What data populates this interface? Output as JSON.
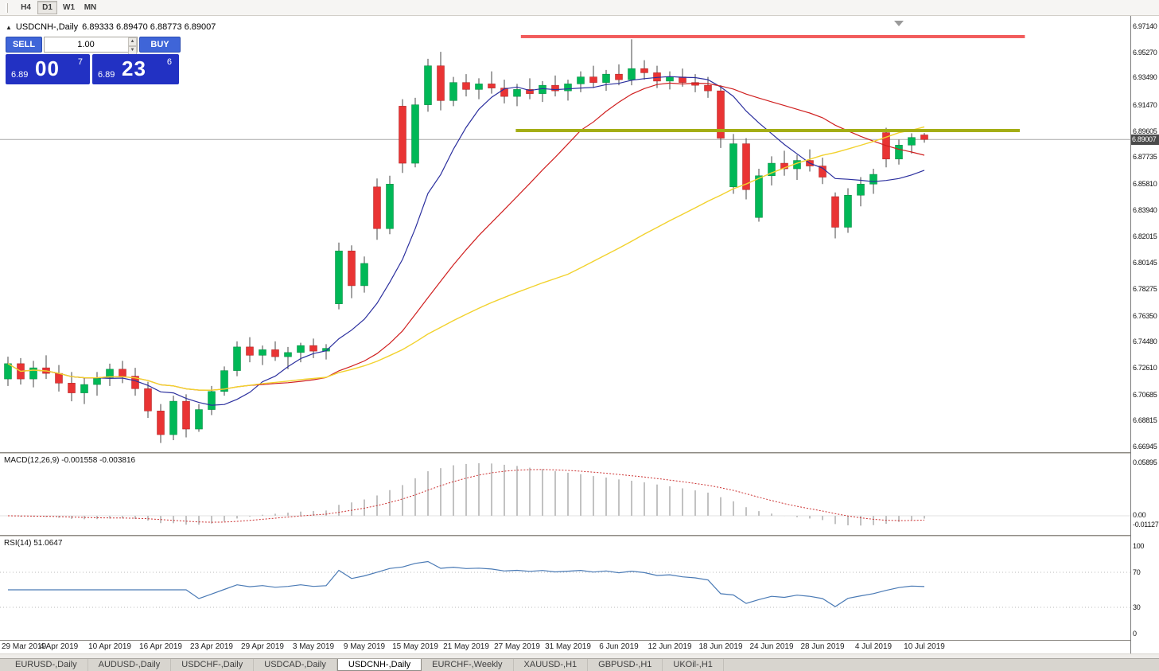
{
  "toolbar": {
    "timeframes": [
      "H4",
      "D1",
      "W1",
      "MN"
    ],
    "active": "D1"
  },
  "title_bar": {
    "expander": "▲",
    "symbol_title": "USDCNH-,Daily",
    "ohlc": "6.89333 6.89470 6.88773 6.89007"
  },
  "one_click": {
    "sell_label": "SELL",
    "buy_label": "BUY",
    "lots": "1.00",
    "bid_small": "6.89",
    "bid_big": "00",
    "bid_sup": "7",
    "ask_small": "6.89",
    "ask_big": "23",
    "ask_sup": "6"
  },
  "price_scale": [
    "6.97140",
    "6.95270",
    "6.93490",
    "6.91470",
    "6.89605",
    "6.87735",
    "6.85810",
    "6.83940",
    "6.82015",
    "6.80145",
    "6.78275",
    "6.76350",
    "6.74480",
    "6.72610",
    "6.70685",
    "6.68815",
    "6.66945"
  ],
  "bid_badge": "6.89007",
  "macd_panel": {
    "label": "MACD(12,26,9) -0.001558 -0.003816",
    "scale_top": "0.05895",
    "scale_zero": "0.00",
    "scale_min": "-0.01127"
  },
  "rsi_panel": {
    "label": "RSI(14) 51.0647",
    "scale": [
      "100",
      "70",
      "30",
      "0"
    ],
    "levels": [
      70,
      30
    ]
  },
  "date_axis": [
    "29 Mar 2019",
    "4 Apr 2019",
    "10 Apr 2019",
    "16 Apr 2019",
    "23 Apr 2019",
    "29 Apr 2019",
    "3 May 2019",
    "9 May 2019",
    "15 May 2019",
    "21 May 2019",
    "27 May 2019",
    "31 May 2019",
    "6 Jun 2019",
    "12 Jun 2019",
    "18 Jun 2019",
    "24 Jun 2019",
    "28 Jun 2019",
    "4 Jul 2019",
    "10 Jul 2019"
  ],
  "tabs": {
    "items": [
      "EURUSD-,Daily",
      "AUDUSD-,Daily",
      "USDCHF-,Daily",
      "USDCAD-,Daily",
      "USDCNH-,Daily",
      "EURCHF-,Weekly",
      "XAUUSD-,H1",
      "GBPUSD-,H1",
      "UKOil-,H1"
    ],
    "active": "USDCNH-,Daily"
  },
  "colors": {
    "bull": "#00b857",
    "bear": "#e93434",
    "ma_fast": "#2b2f9e",
    "ma_mid": "#d02020",
    "ma_slow": "#f2d22e",
    "resistance": "#f25b5b",
    "pivot": "#a3ad14",
    "bid_line": "#a8a8a8",
    "macd_hist": "#c2c2c2",
    "macd_signal": "#cc3333",
    "rsi_line": "#4a7ab5"
  },
  "chart_data": {
    "type": "candlestick",
    "symbol": "USDCNH",
    "timeframe": "Daily",
    "title": "USDCNH-,Daily",
    "y_range": [
      6.66945,
      6.9714
    ],
    "x_labels": [
      "29 Mar 2019",
      "4 Apr 2019",
      "10 Apr 2019",
      "16 Apr 2019",
      "23 Apr 2019",
      "29 Apr 2019",
      "3 May 2019",
      "9 May 2019",
      "15 May 2019",
      "21 May 2019",
      "27 May 2019",
      "31 May 2019",
      "6 Jun 2019",
      "12 Jun 2019",
      "18 Jun 2019",
      "24 Jun 2019",
      "28 Jun 2019",
      "4 Jul 2019",
      "10 Jul 2019"
    ],
    "label_every_n_candles": 4,
    "candles": [
      [
        6.718,
        6.734,
        6.713,
        6.729
      ],
      [
        6.729,
        6.733,
        6.714,
        6.718
      ],
      [
        6.718,
        6.731,
        6.712,
        6.726
      ],
      [
        6.726,
        6.735,
        6.718,
        6.722
      ],
      [
        6.722,
        6.728,
        6.709,
        6.715
      ],
      [
        6.715,
        6.723,
        6.702,
        6.708
      ],
      [
        6.708,
        6.719,
        6.7,
        6.714
      ],
      [
        6.714,
        6.723,
        6.706,
        6.719
      ],
      [
        6.719,
        6.729,
        6.713,
        6.725
      ],
      [
        6.725,
        6.731,
        6.715,
        6.72
      ],
      [
        6.72,
        6.726,
        6.706,
        6.711
      ],
      [
        6.711,
        6.716,
        6.69,
        6.695
      ],
      [
        6.695,
        6.7,
        6.672,
        6.678
      ],
      [
        6.678,
        6.706,
        6.674,
        6.702
      ],
      [
        6.702,
        6.707,
        6.676,
        6.682
      ],
      [
        6.682,
        6.7,
        6.68,
        6.696
      ],
      [
        6.696,
        6.713,
        6.692,
        6.709
      ],
      [
        6.709,
        6.727,
        6.706,
        6.724
      ],
      [
        6.724,
        6.745,
        6.72,
        6.741
      ],
      [
        6.741,
        6.748,
        6.73,
        6.735
      ],
      [
        6.735,
        6.742,
        6.728,
        6.739
      ],
      [
        6.739,
        6.745,
        6.731,
        6.734
      ],
      [
        6.734,
        6.741,
        6.725,
        6.737
      ],
      [
        6.737,
        6.744,
        6.73,
        6.742
      ],
      [
        6.742,
        6.747,
        6.733,
        6.738
      ],
      [
        6.738,
        6.743,
        6.732,
        6.74
      ],
      [
        6.772,
        6.816,
        6.768,
        6.81
      ],
      [
        6.81,
        6.814,
        6.776,
        6.785
      ],
      [
        6.785,
        6.806,
        6.78,
        6.801
      ],
      [
        6.856,
        6.862,
        6.818,
        6.826
      ],
      [
        6.826,
        6.864,
        6.822,
        6.858
      ],
      [
        6.914,
        6.919,
        6.866,
        6.873
      ],
      [
        6.873,
        6.92,
        6.87,
        6.915
      ],
      [
        6.915,
        6.948,
        6.91,
        6.943
      ],
      [
        6.943,
        6.953,
        6.911,
        6.918
      ],
      [
        6.918,
        6.935,
        6.914,
        6.931
      ],
      [
        6.931,
        6.937,
        6.921,
        6.926
      ],
      [
        6.926,
        6.934,
        6.919,
        6.93
      ],
      [
        6.93,
        6.939,
        6.923,
        6.927
      ],
      [
        6.927,
        6.933,
        6.916,
        6.921
      ],
      [
        6.921,
        6.93,
        6.914,
        6.926
      ],
      [
        6.926,
        6.934,
        6.919,
        6.923
      ],
      [
        6.923,
        6.932,
        6.917,
        6.929
      ],
      [
        6.929,
        6.936,
        6.921,
        6.925
      ],
      [
        6.925,
        6.933,
        6.918,
        6.93
      ],
      [
        6.93,
        6.939,
        6.924,
        6.935
      ],
      [
        6.935,
        6.943,
        6.927,
        6.931
      ],
      [
        6.931,
        6.94,
        6.925,
        6.937
      ],
      [
        6.937,
        6.944,
        6.929,
        6.933
      ],
      [
        6.933,
        6.962,
        6.929,
        6.941
      ],
      [
        6.941,
        6.947,
        6.933,
        6.938
      ],
      [
        6.938,
        6.943,
        6.927,
        6.932
      ],
      [
        6.932,
        6.939,
        6.926,
        6.935
      ],
      [
        6.935,
        6.941,
        6.928,
        6.931
      ],
      [
        6.931,
        6.937,
        6.924,
        6.929
      ],
      [
        6.929,
        6.935,
        6.92,
        6.925
      ],
      [
        6.925,
        6.929,
        6.884,
        6.891
      ],
      [
        6.856,
        6.894,
        6.851,
        6.887
      ],
      [
        6.887,
        6.891,
        6.847,
        6.854
      ],
      [
        6.834,
        6.869,
        6.831,
        6.864
      ],
      [
        6.864,
        6.878,
        6.857,
        6.873
      ],
      [
        6.873,
        6.882,
        6.864,
        6.869
      ],
      [
        6.869,
        6.879,
        6.861,
        6.875
      ],
      [
        6.875,
        6.883,
        6.867,
        6.871
      ],
      [
        6.871,
        6.877,
        6.858,
        6.863
      ],
      [
        6.849,
        6.852,
        6.819,
        6.827
      ],
      [
        6.827,
        6.855,
        6.823,
        6.85
      ],
      [
        6.85,
        6.863,
        6.842,
        6.858
      ],
      [
        6.858,
        6.869,
        6.851,
        6.865
      ],
      [
        6.895,
        6.8985,
        6.87,
        6.876
      ],
      [
        6.876,
        6.89,
        6.872,
        6.886
      ],
      [
        6.886,
        6.8945,
        6.88,
        6.8915
      ],
      [
        6.89333,
        6.8947,
        6.88773,
        6.89007
      ]
    ],
    "overlays": {
      "bid_line": {
        "price": 6.89007
      },
      "resistance_line": {
        "price": 6.964,
        "from_index": 40.3,
        "to_index": 79.9,
        "color": "#f25b5b"
      },
      "pivot_line": {
        "price": 6.8965,
        "from_index": 39.9,
        "to_index": 79.5,
        "color": "#a3ad14"
      },
      "moving_averages": [
        {
          "period": 8,
          "color": "#2b2f9e"
        },
        {
          "period": 20,
          "color": "#d02020"
        },
        {
          "period": 45,
          "color": "#f2d22e"
        }
      ]
    },
    "indicators": {
      "macd": {
        "params": [
          12,
          26,
          9
        ],
        "main": -0.001558,
        "signal": -0.003816,
        "scale_labels": [
          "0.05895",
          "0.00",
          "-0.01127"
        ]
      },
      "rsi": {
        "period": 14,
        "value": 51.0647,
        "levels": [
          70,
          30
        ],
        "scale_labels": [
          "100",
          "70",
          "30",
          "0"
        ]
      }
    }
  }
}
